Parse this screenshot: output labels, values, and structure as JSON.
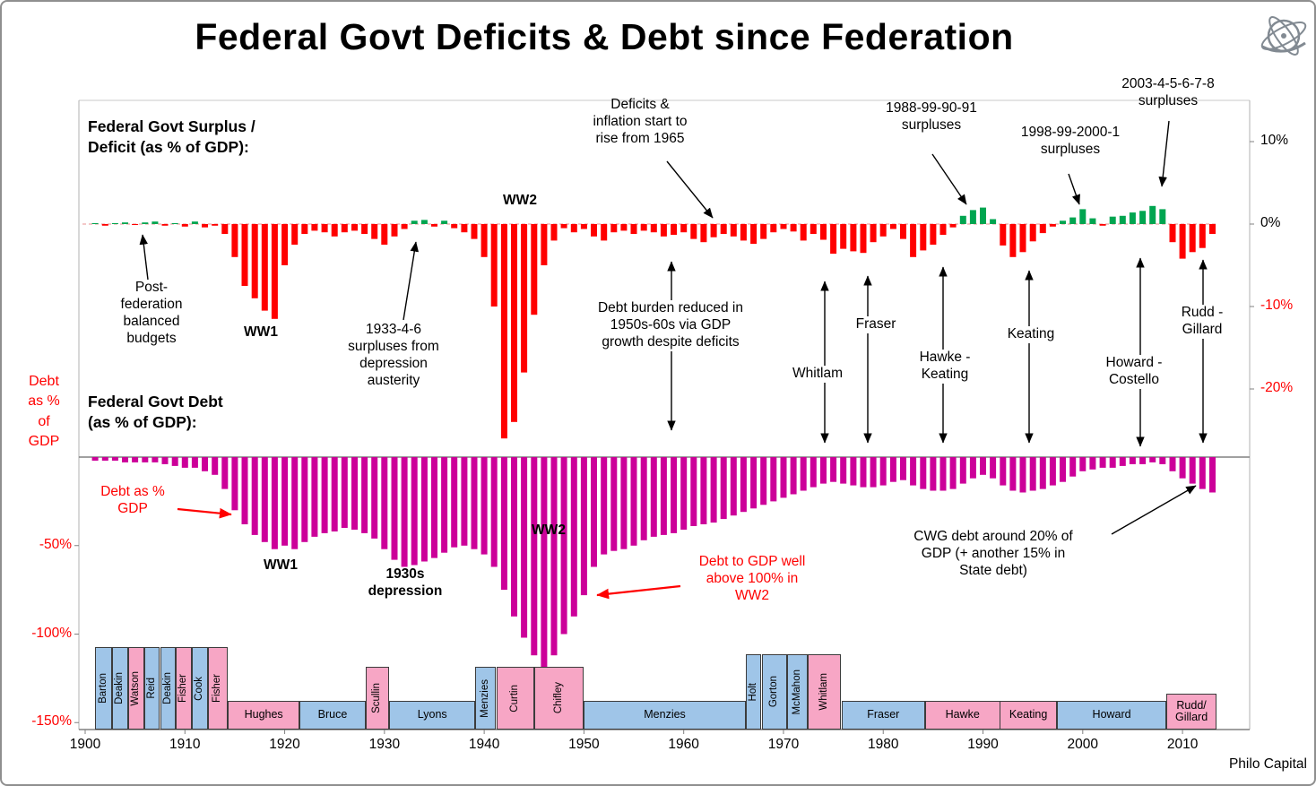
{
  "title": "Federal Govt Deficits & Debt since Federation",
  "branding": "Philo Capital",
  "colors": {
    "deficit": "#FF0000",
    "surplus": "#00A550",
    "debt": "#CC0099",
    "pm_blue": "#9FC5E8",
    "pm_pink": "#F7A6C5",
    "axis_negative": "#FF0000"
  },
  "axes": {
    "right": [
      {
        "label": "10%",
        "value": 10
      },
      {
        "label": "0%",
        "value": 0
      },
      {
        "label": "-10%",
        "value": -10
      },
      {
        "label": "-20%",
        "value": -20
      }
    ],
    "left": [
      {
        "label": "-50%",
        "value": -50
      },
      {
        "label": "-100%",
        "value": -100
      },
      {
        "label": "-150%",
        "value": -150
      }
    ],
    "x": [
      "1900",
      "1910",
      "1920",
      "1930",
      "1940",
      "1950",
      "1960",
      "1970",
      "1980",
      "1990",
      "2000",
      "2010"
    ]
  },
  "annotations": {
    "surplus_header": "Federal Govt Surplus /\nDeficit (as % of GDP):",
    "post_federation": "Post-\nfederation\nbalanced\nbudgets",
    "ww1_top": "WW1",
    "surpluses_1933": "1933-4-6\nsurpluses from\ndepression\nausterity",
    "ww2_top": "WW2",
    "deficits_1965": "Deficits &\ninflation start to\nrise from  1965",
    "debt_burden": "Debt burden reduced in\n1950s-60s via GDP\ngrowth despite deficits",
    "surpluses_1988": "1988-99-90-91\nsurpluses",
    "surpluses_1998": "1998-99-2000-1\nsurpluses",
    "surpluses_2003": "2003-4-5-6-7-8\nsurpluses",
    "whitlam": "Whitlam",
    "fraser": "Fraser",
    "hawke_keating": "Hawke -\nKeating",
    "keating": "Keating",
    "howard_costello": "Howard -\nCostello",
    "rudd_gillard": "Rudd -\nGillard",
    "debt_header": "Federal Govt Debt\n(as % of GDP):",
    "debt_axis_label": "Debt\nas %\nof\nGDP",
    "debt_pct_gdp": "Debt as %\nGDP",
    "ww1_bottom": "WW1",
    "depression_1930s": "1930s\ndepression",
    "ww2_bottom": "WW2",
    "debt_100_ww2": "Debt to GDP well\nabove 100%  in\nWW2",
    "cwg_debt": "CWG debt around 20% of\nGDP (+ another 15% in\nState debt)"
  },
  "pm_timeline": [
    {
      "label": "Barton",
      "start": 1901.0,
      "end": 1902.7,
      "party": "blue",
      "orient": "v",
      "tier": "tall"
    },
    {
      "label": "Deakin",
      "start": 1902.7,
      "end": 1904.3,
      "party": "blue",
      "orient": "v",
      "tier": "tall"
    },
    {
      "label": "Watson",
      "start": 1904.3,
      "end": 1905.9,
      "party": "pink",
      "orient": "v",
      "tier": "tall"
    },
    {
      "label": "Reid",
      "start": 1905.9,
      "end": 1907.5,
      "party": "blue",
      "orient": "v",
      "tier": "tall"
    },
    {
      "label": "Deakin",
      "start": 1907.5,
      "end": 1909.1,
      "party": "blue",
      "orient": "v",
      "tier": "tall"
    },
    {
      "label": "Fisher",
      "start": 1909.1,
      "end": 1910.7,
      "party": "pink",
      "orient": "v",
      "tier": "tall"
    },
    {
      "label": "Cook",
      "start": 1910.7,
      "end": 1912.3,
      "party": "blue",
      "orient": "v",
      "tier": "tall"
    },
    {
      "label": "Fisher",
      "start": 1912.3,
      "end": 1914.3,
      "party": "pink",
      "orient": "v",
      "tier": "tall"
    },
    {
      "label": "Hughes",
      "start": 1914.3,
      "end": 1921.5,
      "party": "pink",
      "orient": "h",
      "tier": "short"
    },
    {
      "label": "Bruce",
      "start": 1921.5,
      "end": 1928.1,
      "party": "blue",
      "orient": "h",
      "tier": "short"
    },
    {
      "label": "Scullin",
      "start": 1928.1,
      "end": 1930.5,
      "party": "pink",
      "orient": "v",
      "tier": "mid"
    },
    {
      "label": "Lyons",
      "start": 1930.5,
      "end": 1939.1,
      "party": "blue",
      "orient": "h",
      "tier": "short"
    },
    {
      "label": "Menzies",
      "start": 1939.1,
      "end": 1941.2,
      "party": "blue",
      "orient": "v",
      "tier": "mid"
    },
    {
      "label": "Curtin",
      "start": 1941.2,
      "end": 1945.0,
      "party": "pink",
      "orient": "v",
      "tier": "mid"
    },
    {
      "label": "Chifley",
      "start": 1945.0,
      "end": 1950.0,
      "party": "pink",
      "orient": "v",
      "tier": "mid"
    },
    {
      "label": "Menzies",
      "start": 1950.0,
      "end": 1966.2,
      "party": "blue",
      "orient": "h",
      "tier": "short"
    },
    {
      "label": "Holt",
      "start": 1966.2,
      "end": 1967.8,
      "party": "blue",
      "orient": "v",
      "tier": "tall2"
    },
    {
      "label": "Gorton",
      "start": 1967.8,
      "end": 1970.4,
      "party": "blue",
      "orient": "v",
      "tier": "tall2"
    },
    {
      "label": "McMahon",
      "start": 1970.4,
      "end": 1972.4,
      "party": "blue",
      "orient": "v",
      "tier": "tall2"
    },
    {
      "label": "Whitlam",
      "start": 1972.4,
      "end": 1975.8,
      "party": "pink",
      "orient": "v",
      "tier": "tall2"
    },
    {
      "label": "Fraser",
      "start": 1975.8,
      "end": 1984.2,
      "party": "blue",
      "orient": "h",
      "tier": "short"
    },
    {
      "label": "Hawke",
      "start": 1984.2,
      "end": 1991.7,
      "party": "pink",
      "orient": "h",
      "tier": "short"
    },
    {
      "label": "Keating",
      "start": 1991.7,
      "end": 1997.4,
      "party": "pink",
      "orient": "h",
      "tier": "short"
    },
    {
      "label": "Howard",
      "start": 1997.4,
      "end": 2008.4,
      "party": "blue",
      "orient": "h",
      "tier": "short"
    },
    {
      "label": "Rudd/\nGillard",
      "start": 2008.4,
      "end": 2013.4,
      "party": "pink",
      "orient": "h",
      "tier": "short2"
    }
  ],
  "chart_data": {
    "type": "bar",
    "x_unit": "year",
    "x_range": [
      1901,
      2013
    ],
    "panels": [
      {
        "name": "surplus_deficit",
        "title": "Federal Govt Surplus / Deficit (as % of GDP)",
        "ylim": [
          -28,
          12
        ],
        "yticks": [
          10,
          0,
          -10,
          -20
        ],
        "start_year": 1901,
        "values": [
          0.1,
          -0.2,
          0.1,
          0.2,
          -0.1,
          0.2,
          0.3,
          -0.2,
          0.1,
          -0.3,
          0.3,
          -0.4,
          -0.2,
          -1.2,
          -4,
          -7.5,
          -9,
          -10.5,
          -11.5,
          -5,
          -2.5,
          -1.2,
          -0.8,
          -1,
          -1.5,
          -1,
          -0.8,
          -1.2,
          -1.8,
          -2.5,
          -1.5,
          -0.6,
          0.4,
          0.5,
          -0.3,
          0.4,
          -0.5,
          -1,
          -1.8,
          -4,
          -10,
          -26,
          -24,
          -18,
          -11,
          -5,
          -2,
          -0.5,
          -1,
          -0.6,
          -1.5,
          -2,
          -1,
          -0.8,
          -1.2,
          -0.8,
          -1,
          -1.5,
          -1.3,
          -1,
          -1.8,
          -2.2,
          -1.6,
          -1.2,
          -1.5,
          -2,
          -2.4,
          -1.8,
          -1,
          -0.6,
          -0.9,
          -2,
          -1.2,
          -1.9,
          -3.6,
          -3,
          -3.3,
          -3.5,
          -2.2,
          -1.5,
          -0.6,
          -1.8,
          -4,
          -3.2,
          -2.5,
          -1.3,
          -0.4,
          1,
          1.7,
          2,
          0.6,
          -2.6,
          -4,
          -3.4,
          -2.1,
          -1.1,
          -0.3,
          0.4,
          0.8,
          1.8,
          0.7,
          -0.2,
          0.9,
          1,
          1.4,
          1.6,
          2.2,
          1.8,
          -2.2,
          -4.2,
          -3.4,
          -2.9,
          -1.2
        ]
      },
      {
        "name": "debt",
        "title": "Federal Govt Debt (as % of GDP)",
        "ylim": [
          -150,
          0
        ],
        "yticks": [
          -50,
          -100,
          -150
        ],
        "start_year": 1901,
        "values": [
          -2,
          -2,
          -2,
          -3,
          -3,
          -3,
          -3,
          -4,
          -5,
          -6,
          -6,
          -8,
          -10,
          -18,
          -30,
          -38,
          -44,
          -48,
          -52,
          -50,
          -52,
          -48,
          -45,
          -43,
          -42,
          -40,
          -41,
          -43,
          -46,
          -52,
          -58,
          -62,
          -61,
          -59,
          -57,
          -54,
          -51,
          -50,
          -52,
          -55,
          -62,
          -75,
          -90,
          -102,
          -112,
          -120,
          -112,
          -100,
          -90,
          -78,
          -62,
          -55,
          -53,
          -52,
          -50,
          -47,
          -45,
          -44,
          -43,
          -41,
          -39,
          -38,
          -37,
          -35,
          -33,
          -31,
          -29,
          -27,
          -25,
          -23,
          -21,
          -19,
          -17,
          -15,
          -14,
          -15,
          -16,
          -17,
          -17,
          -16,
          -14,
          -13,
          -16,
          -18,
          -19,
          -19,
          -18,
          -15,
          -12,
          -10,
          -12,
          -16,
          -19,
          -20,
          -19,
          -18,
          -16,
          -14,
          -11,
          -8,
          -7,
          -6,
          -6,
          -5,
          -4,
          -4,
          -3,
          -4,
          -8,
          -12,
          -15,
          -18,
          -20
        ]
      }
    ]
  }
}
